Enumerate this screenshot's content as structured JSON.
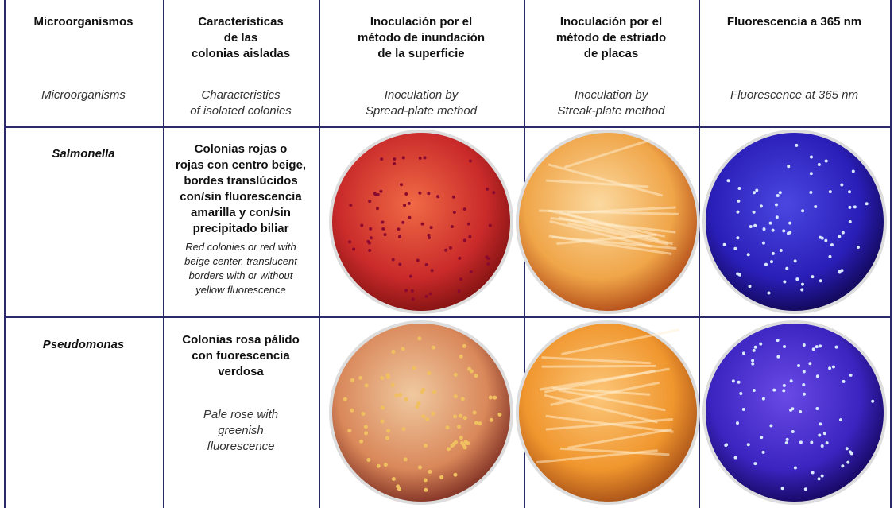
{
  "header": {
    "columns": [
      {
        "es": [
          "Microorganismos"
        ],
        "en": [
          "Microorganisms"
        ]
      },
      {
        "es": [
          "Características",
          "de las",
          "colonias aisladas"
        ],
        "en": [
          "Characteristics",
          "of isolated colonies"
        ]
      },
      {
        "es": [
          "Inoculación por el",
          "método de inundación",
          "de la superficie"
        ],
        "en": [
          "Inoculation by",
          "Spread-plate method"
        ]
      },
      {
        "es": [
          "Inoculación por el",
          "método de estriado",
          "de placas"
        ],
        "en": [
          "Inoculation by",
          "Streak-plate method"
        ]
      },
      {
        "es": [
          "Fluorescencia a 365 nm"
        ],
        "en": [
          "Fluorescence at 365 nm"
        ]
      }
    ]
  },
  "rows": [
    {
      "organism": "Salmonella",
      "es": [
        "Colonias rojas o",
        "rojas con centro beige,",
        "bordes translúcidos",
        "con/sin fluorescencia",
        "amarilla y con/sin",
        "precipitado biliar"
      ],
      "en": [
        "Red  colonies or red with",
        "beige center, translucent",
        "borders with or without",
        "yellow fluorescence"
      ]
    },
    {
      "organism": "Pseudomonas",
      "es": [
        "Colonias rosa pálido",
        "con fuorescencia",
        "verdosa"
      ],
      "en": [
        "Pale rose with",
        "greenish",
        "fluorescence"
      ]
    }
  ]
}
